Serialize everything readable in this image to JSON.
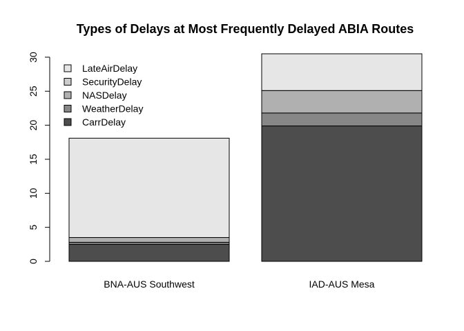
{
  "chart_data": {
    "type": "bar",
    "stacked": true,
    "title": "Types of Delays at Most Frequently Delayed ABIA Routes",
    "xlabel": "",
    "ylabel": "",
    "categories": [
      "BNA-AUS Southwest",
      "IAD-AUS Mesa"
    ],
    "series": [
      {
        "name": "CarrDelay",
        "color": "#4d4d4d",
        "values": [
          2.5,
          19.9
        ]
      },
      {
        "name": "WeatherDelay",
        "color": "#878787",
        "values": [
          0.3,
          1.9
        ]
      },
      {
        "name": "NASDelay",
        "color": "#b0b0b0",
        "values": [
          0.7,
          3.3
        ]
      },
      {
        "name": "SecurityDelay",
        "color": "#cccccc",
        "values": [
          0.0,
          0.0
        ]
      },
      {
        "name": "LateAirDelay",
        "color": "#e6e6e6",
        "values": [
          14.6,
          5.4
        ]
      }
    ],
    "totals": [
      18.1,
      30.5
    ],
    "ylim": [
      0,
      30.5
    ],
    "yticks": [
      0,
      5,
      10,
      15,
      20,
      25,
      30
    ],
    "legend_order": [
      "LateAirDelay",
      "SecurityDelay",
      "NASDelay",
      "WeatherDelay",
      "CarrDelay"
    ],
    "legend_position": "top-left",
    "grid": false
  }
}
